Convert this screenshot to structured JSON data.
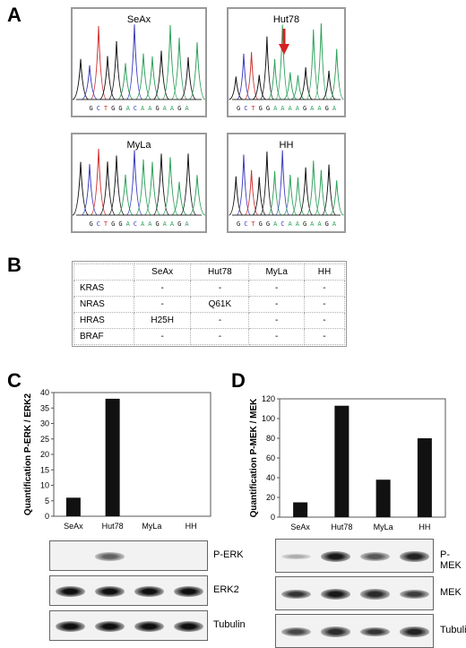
{
  "panels": {
    "a": "A",
    "b": "B",
    "c": "C",
    "d": "D"
  },
  "chromatograms": [
    {
      "title": "SeAx",
      "sequence": [
        "G",
        "C",
        "T",
        "G",
        "G",
        "A",
        "C",
        "A",
        "A",
        "G",
        "A",
        "A",
        "G",
        "A"
      ]
    },
    {
      "title": "Hut78",
      "sequence": [
        "G",
        "C",
        "T",
        "G",
        "G",
        "A",
        "A",
        "A",
        "A",
        "G",
        "A",
        "A",
        "G",
        "A"
      ]
    },
    {
      "title": "MyLa",
      "sequence": [
        "G",
        "C",
        "T",
        "G",
        "G",
        "A",
        "C",
        "A",
        "A",
        "G",
        "A",
        "A",
        "G",
        "A"
      ]
    },
    {
      "title": "HH",
      "sequence": [
        "G",
        "C",
        "T",
        "G",
        "G",
        "A",
        "C",
        "A",
        "A",
        "G",
        "A",
        "A",
        "G",
        "A"
      ]
    }
  ],
  "base_colors": {
    "A": "#2ca05a",
    "C": "#3a3ac0",
    "G": "#111111",
    "T": "#d03030"
  },
  "arrow_color": "#d62020",
  "mutation_table": {
    "columns": [
      "",
      "SeAx",
      "Hut78",
      "MyLa",
      "HH"
    ],
    "rows": [
      [
        "KRAS",
        "-",
        "-",
        "-",
        "-"
      ],
      [
        "NRAS",
        "-",
        "Q61K",
        "-",
        "-"
      ],
      [
        "HRAS",
        "H25H",
        "-",
        "-",
        "-"
      ],
      [
        "BRAF",
        "-",
        "-",
        "-",
        "-"
      ]
    ]
  },
  "chart_data": [
    {
      "type": "bar",
      "categories": [
        "SeAx",
        "Hut78",
        "MyLa",
        "HH"
      ],
      "values": [
        6,
        38,
        0,
        0
      ],
      "ylabel": "Quantification P-ERK / ERK2",
      "ylim": [
        0,
        40
      ],
      "yticks": [
        0,
        5,
        10,
        15,
        20,
        25,
        30,
        35,
        40
      ],
      "grid": false
    },
    {
      "type": "bar",
      "categories": [
        "SeAx",
        "Hut78",
        "MyLa",
        "HH"
      ],
      "values": [
        15,
        113,
        38,
        80
      ],
      "ylabel": "Quantification P-MEK / MEK",
      "ylim": [
        0,
        120
      ],
      "yticks": [
        0,
        20,
        40,
        60,
        80,
        100,
        120
      ],
      "grid": false
    }
  ],
  "blots_c": [
    {
      "label": "P-ERK",
      "intensity": [
        0,
        0.55,
        0,
        0
      ]
    },
    {
      "label": "ERK2",
      "intensity": [
        1,
        1,
        1,
        1
      ]
    },
    {
      "label": "Tubulin",
      "intensity": [
        1,
        1,
        1,
        1
      ]
    }
  ],
  "blots_d": [
    {
      "label": "P-MEK",
      "intensity": [
        0.15,
        0.95,
        0.6,
        0.9
      ]
    },
    {
      "label": "MEK",
      "intensity": [
        0.8,
        0.95,
        0.85,
        0.75
      ]
    },
    {
      "label": "Tubulin",
      "intensity": [
        0.7,
        0.85,
        0.8,
        0.9
      ]
    }
  ]
}
